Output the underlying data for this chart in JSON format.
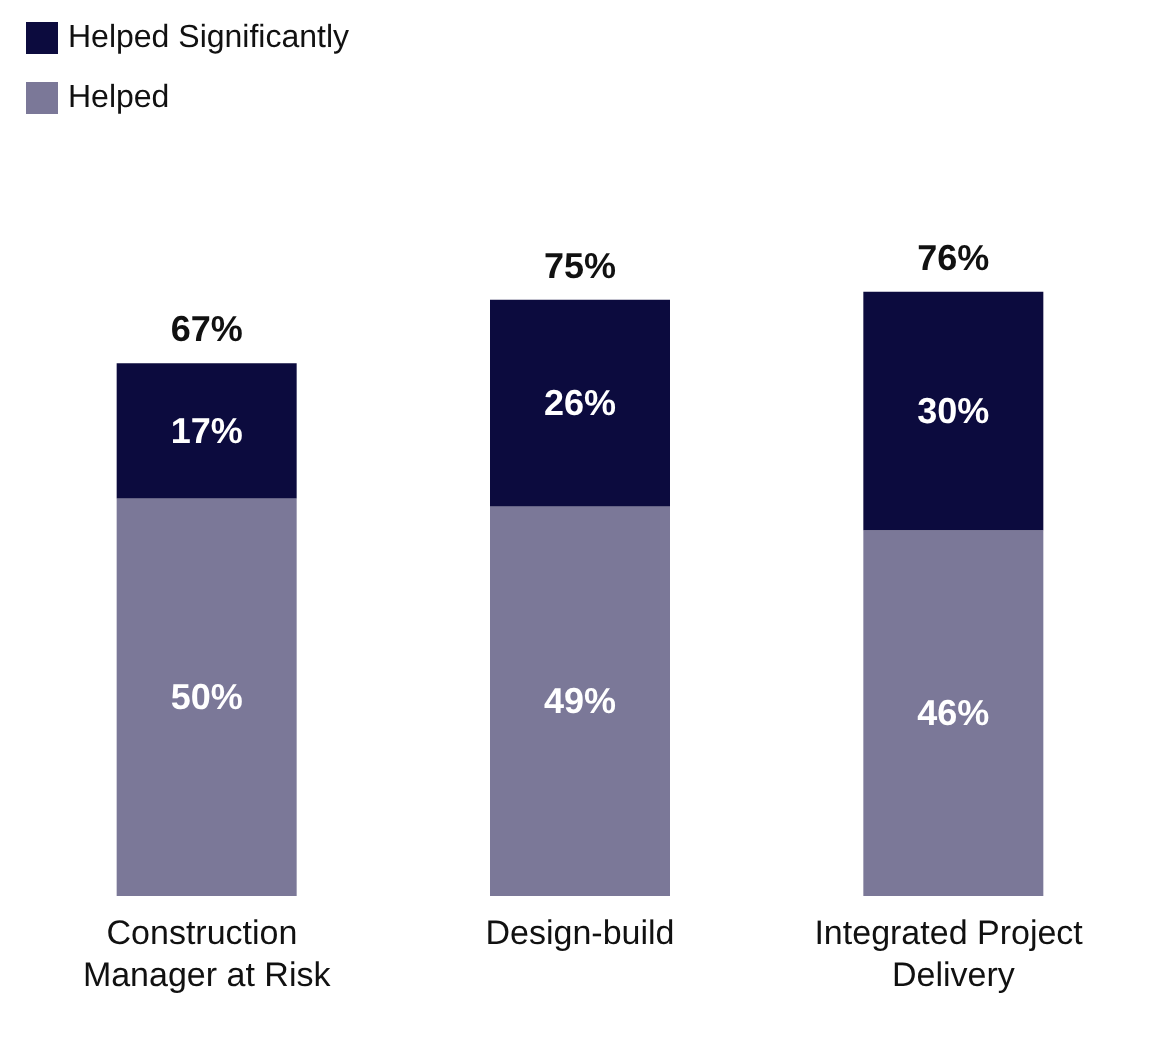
{
  "chart_data": {
    "type": "bar",
    "stacked": true,
    "categories": [
      "Construction Manager at Risk",
      "Design-build",
      "Integrated Project Delivery"
    ],
    "series": [
      {
        "name": "Helped",
        "color": "#7b7898",
        "values": [
          50,
          49,
          46
        ],
        "value_labels": [
          "50%",
          "49%",
          "46%"
        ]
      },
      {
        "name": "Helped Significantly",
        "color": "#0c0b3e",
        "values": [
          17,
          26,
          30
        ],
        "value_labels": [
          "17%",
          "26%",
          "30%"
        ]
      }
    ],
    "totals": [
      "67%",
      "75%",
      "76%"
    ],
    "legend": "top left"
  }
}
